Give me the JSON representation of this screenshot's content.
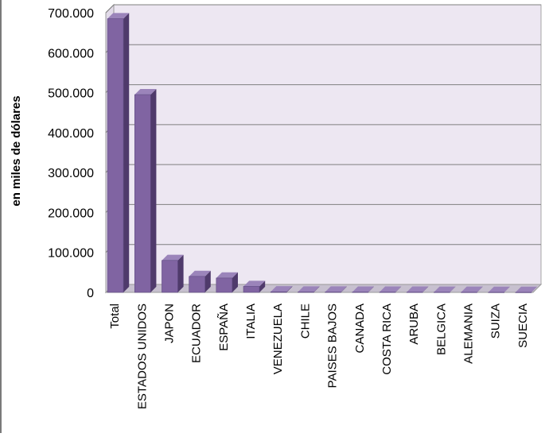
{
  "chart_data": {
    "type": "bar",
    "title": "",
    "xlabel": "",
    "ylabel": "en miles de dólares",
    "categories": [
      "Total",
      "ESTADOS UNIDOS",
      "JAPON",
      "ECUADOR",
      "ESPAÑA",
      "ITALIA",
      "VENEZUELA",
      "CHILE",
      "PAISES BAJOS",
      "CANADA",
      "COSTA RICA",
      "ARUBA",
      "BELGICA",
      "ALEMANIA",
      "SUIZA",
      "SUECIA"
    ],
    "values": [
      685000,
      495000,
      80000,
      40000,
      36000,
      15000,
      1500,
      1000,
      900,
      800,
      700,
      600,
      500,
      400,
      300,
      200
    ],
    "ylim": [
      0,
      700000
    ],
    "yticks": [
      0,
      100000,
      200000,
      300000,
      400000,
      500000,
      600000,
      700000
    ],
    "ytick_labels": [
      "0",
      "100.000",
      "200.000",
      "300.000",
      "400.000",
      "500.000",
      "600.000",
      "700.000"
    ],
    "grid": true,
    "legend": "none",
    "colors": {
      "bar_front": "#8064a2",
      "bar_side": "#4f3a6b",
      "bar_top": "#9b84ba",
      "plot_back": "#ede7f2",
      "floor": "#c7c0cf",
      "grid": "#7f7f7f"
    }
  }
}
